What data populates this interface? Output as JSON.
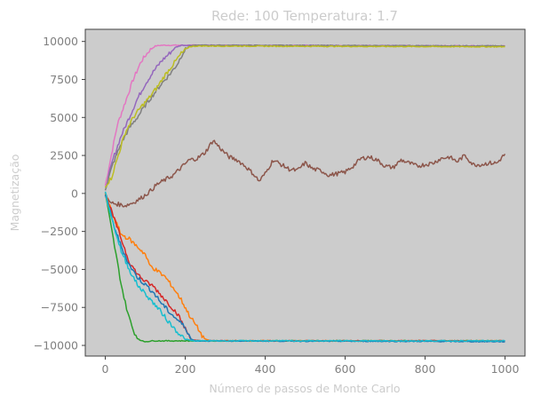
{
  "chart_data": {
    "type": "line",
    "title": "Rede: 100 Temperatura: 1.7",
    "xlabel": "Número de passos de Monte Carlo",
    "ylabel": "Magnetização",
    "xlim": [
      -50,
      1050
    ],
    "ylim": [
      -10700,
      10800
    ],
    "xticks": [
      0,
      200,
      400,
      600,
      800,
      1000
    ],
    "yticks": [
      -10000,
      -7500,
      -5000,
      -2500,
      0,
      2500,
      5000,
      7500,
      10000
    ],
    "grid": false,
    "legend": "none",
    "background": "#cccccc",
    "series": [
      {
        "color": "#e377c2",
        "points": [
          [
            0,
            500
          ],
          [
            15,
            2500
          ],
          [
            30,
            4500
          ],
          [
            50,
            6000
          ],
          [
            70,
            7500
          ],
          [
            90,
            8700
          ],
          [
            110,
            9400
          ],
          [
            125,
            9700
          ],
          [
            140,
            9750
          ],
          [
            200,
            9750
          ],
          [
            1000,
            9700
          ]
        ]
      },
      {
        "color": "#9467bd",
        "points": [
          [
            0,
            300
          ],
          [
            20,
            2300
          ],
          [
            40,
            3800
          ],
          [
            60,
            5000
          ],
          [
            80,
            6200
          ],
          [
            100,
            7200
          ],
          [
            120,
            8000
          ],
          [
            140,
            8700
          ],
          [
            160,
            9200
          ],
          [
            175,
            9600
          ],
          [
            190,
            9750
          ],
          [
            1000,
            9700
          ]
        ]
      },
      {
        "color": "#7f7f7f",
        "points": [
          [
            0,
            300
          ],
          [
            20,
            2000
          ],
          [
            40,
            3300
          ],
          [
            60,
            4300
          ],
          [
            80,
            5000
          ],
          [
            100,
            5800
          ],
          [
            120,
            6500
          ],
          [
            140,
            7200
          ],
          [
            160,
            7800
          ],
          [
            180,
            8500
          ],
          [
            195,
            9300
          ],
          [
            210,
            9700
          ],
          [
            230,
            9750
          ],
          [
            1000,
            9700
          ]
        ]
      },
      {
        "color": "#bcbd22",
        "points": [
          [
            0,
            500
          ],
          [
            15,
            1000
          ],
          [
            30,
            2300
          ],
          [
            50,
            4000
          ],
          [
            70,
            5000
          ],
          [
            90,
            5700
          ],
          [
            110,
            6300
          ],
          [
            130,
            7000
          ],
          [
            150,
            7800
          ],
          [
            170,
            8500
          ],
          [
            190,
            9200
          ],
          [
            210,
            9650
          ],
          [
            230,
            9700
          ],
          [
            1000,
            9650
          ]
        ]
      },
      {
        "color": "#8c564b",
        "points": [
          [
            0,
            0
          ],
          [
            10,
            -600
          ],
          [
            30,
            -700
          ],
          [
            50,
            -800
          ],
          [
            70,
            -600
          ],
          [
            90,
            -300
          ],
          [
            110,
            100
          ],
          [
            130,
            600
          ],
          [
            150,
            900
          ],
          [
            170,
            1200
          ],
          [
            190,
            1700
          ],
          [
            210,
            2200
          ],
          [
            230,
            2300
          ],
          [
            250,
            2700
          ],
          [
            270,
            3500
          ],
          [
            290,
            2900
          ],
          [
            310,
            2400
          ],
          [
            330,
            2200
          ],
          [
            350,
            1800
          ],
          [
            370,
            1300
          ],
          [
            385,
            800
          ],
          [
            400,
            1300
          ],
          [
            420,
            2200
          ],
          [
            440,
            1900
          ],
          [
            460,
            1600
          ],
          [
            480,
            1500
          ],
          [
            500,
            2000
          ],
          [
            520,
            1600
          ],
          [
            540,
            1500
          ],
          [
            560,
            1200
          ],
          [
            580,
            1300
          ],
          [
            600,
            1400
          ],
          [
            620,
            1800
          ],
          [
            640,
            2300
          ],
          [
            660,
            2400
          ],
          [
            680,
            2200
          ],
          [
            700,
            1800
          ],
          [
            720,
            1700
          ],
          [
            740,
            2200
          ],
          [
            760,
            2000
          ],
          [
            780,
            1800
          ],
          [
            800,
            1900
          ],
          [
            820,
            2000
          ],
          [
            840,
            2300
          ],
          [
            860,
            2400
          ],
          [
            880,
            2100
          ],
          [
            900,
            2500
          ],
          [
            920,
            1900
          ],
          [
            940,
            1900
          ],
          [
            960,
            2000
          ],
          [
            980,
            2000
          ],
          [
            1000,
            2600
          ]
        ]
      },
      {
        "color": "#2ca02c",
        "points": [
          [
            0,
            0
          ],
          [
            10,
            -1500
          ],
          [
            20,
            -3000
          ],
          [
            30,
            -4500
          ],
          [
            40,
            -6000
          ],
          [
            50,
            -7200
          ],
          [
            60,
            -8200
          ],
          [
            70,
            -9000
          ],
          [
            80,
            -9500
          ],
          [
            90,
            -9700
          ],
          [
            100,
            -9750
          ],
          [
            120,
            -9700
          ],
          [
            200,
            -9700
          ],
          [
            1000,
            -9700
          ]
        ]
      },
      {
        "color": "#ff7f0e",
        "points": [
          [
            0,
            0
          ],
          [
            20,
            -1500
          ],
          [
            40,
            -2700
          ],
          [
            60,
            -3000
          ],
          [
            80,
            -3500
          ],
          [
            100,
            -4000
          ],
          [
            110,
            -4700
          ],
          [
            130,
            -5100
          ],
          [
            150,
            -5500
          ],
          [
            170,
            -6200
          ],
          [
            190,
            -7000
          ],
          [
            210,
            -8000
          ],
          [
            230,
            -8800
          ],
          [
            245,
            -9500
          ],
          [
            260,
            -9700
          ],
          [
            300,
            -9700
          ],
          [
            1000,
            -9700
          ]
        ]
      },
      {
        "color": "#d62728",
        "points": [
          [
            0,
            0
          ],
          [
            20,
            -1500
          ],
          [
            40,
            -3000
          ],
          [
            60,
            -4500
          ],
          [
            80,
            -5300
          ],
          [
            100,
            -5800
          ],
          [
            120,
            -6100
          ],
          [
            140,
            -6700
          ],
          [
            160,
            -7300
          ],
          [
            180,
            -7900
          ],
          [
            200,
            -8900
          ],
          [
            215,
            -9600
          ],
          [
            230,
            -9700
          ],
          [
            1000,
            -9700
          ]
        ]
      },
      {
        "color": "#1f77b4",
        "points": [
          [
            0,
            0
          ],
          [
            20,
            -2000
          ],
          [
            40,
            -3500
          ],
          [
            60,
            -4700
          ],
          [
            80,
            -5500
          ],
          [
            100,
            -6000
          ],
          [
            120,
            -6500
          ],
          [
            140,
            -7200
          ],
          [
            160,
            -7800
          ],
          [
            180,
            -8300
          ],
          [
            200,
            -8800
          ],
          [
            215,
            -9600
          ],
          [
            225,
            -9700
          ],
          [
            1000,
            -9750
          ]
        ]
      },
      {
        "color": "#17becf",
        "points": [
          [
            0,
            0
          ],
          [
            20,
            -2000
          ],
          [
            40,
            -3800
          ],
          [
            60,
            -5000
          ],
          [
            80,
            -6000
          ],
          [
            100,
            -6600
          ],
          [
            120,
            -7200
          ],
          [
            140,
            -7800
          ],
          [
            160,
            -8500
          ],
          [
            180,
            -9100
          ],
          [
            200,
            -9600
          ],
          [
            220,
            -9700
          ],
          [
            1000,
            -9700
          ]
        ]
      }
    ]
  }
}
